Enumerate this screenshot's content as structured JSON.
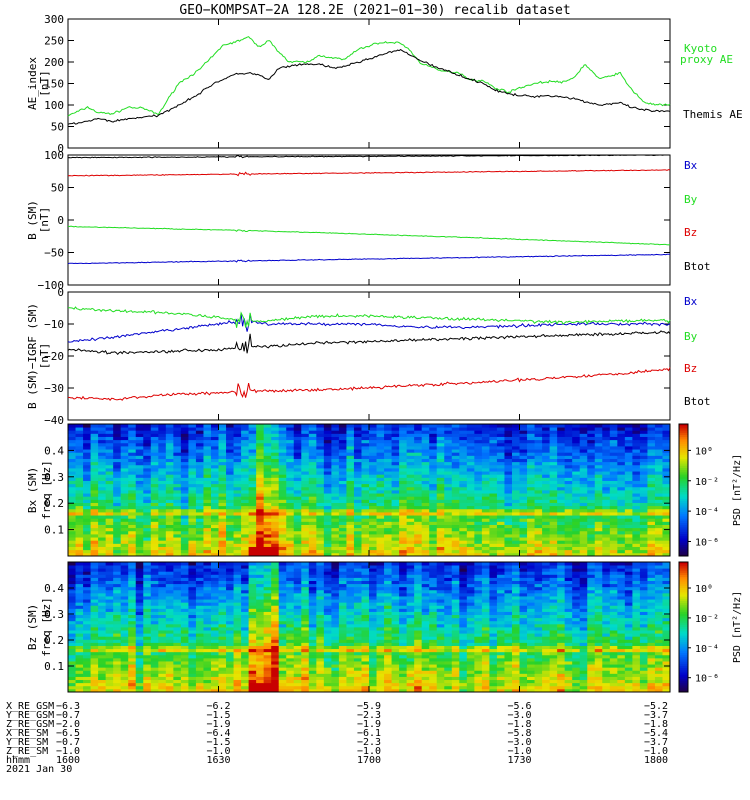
{
  "title": "GEO−KOMPSAT−2A 128.2E (2021−01−30) recalib dataset",
  "colors": {
    "black": "#000000",
    "green": "#22dd22",
    "blue": "#0000cc",
    "red": "#dd0000"
  },
  "chart_data": [
    {
      "type": "line",
      "ylabel": [
        "AE_index",
        "[nT]"
      ],
      "ylim": [
        0,
        300
      ],
      "yticks": [
        "0",
        "50",
        "100",
        "150",
        "200",
        "250",
        "300"
      ],
      "series": [
        {
          "name": "Kyoto proxy AE",
          "label_lines": [
            "Kyoto",
            "proxy AE"
          ],
          "color": "#22dd22",
          "x": [
            0,
            4,
            6,
            9,
            12,
            15,
            18,
            22,
            26,
            29,
            31,
            33,
            36,
            38,
            40,
            42,
            44,
            48,
            50,
            53,
            55,
            58,
            62,
            66,
            68,
            70,
            74,
            78,
            80,
            83,
            85,
            88,
            90,
            93,
            96,
            99,
            101,
            103,
            106,
            110,
            112,
            115,
            118,
            120
          ],
          "y": [
            75,
            95,
            82,
            80,
            95,
            92,
            78,
            150,
            180,
            215,
            240,
            245,
            258,
            235,
            250,
            225,
            200,
            200,
            215,
            210,
            205,
            230,
            245,
            245,
            230,
            200,
            180,
            175,
            160,
            155,
            140,
            130,
            140,
            150,
            155,
            153,
            165,
            195,
            160,
            175,
            140,
            105,
            100,
            100
          ]
        },
        {
          "name": "Themis AE",
          "label_lines": [
            "Themis AE"
          ],
          "color": "#000000",
          "x": [
            0,
            4,
            6,
            9,
            12,
            15,
            18,
            22,
            26,
            29,
            31,
            33,
            36,
            38,
            40,
            42,
            44,
            48,
            50,
            53,
            55,
            58,
            62,
            66,
            68,
            70,
            74,
            78,
            80,
            83,
            85,
            88,
            90,
            93,
            96,
            99,
            101,
            103,
            106,
            110,
            112,
            115,
            118,
            120
          ],
          "y": [
            55,
            62,
            68,
            62,
            68,
            72,
            75,
            100,
            125,
            150,
            160,
            170,
            175,
            170,
            158,
            185,
            190,
            195,
            195,
            185,
            190,
            200,
            215,
            228,
            218,
            205,
            185,
            170,
            160,
            150,
            135,
            125,
            122,
            120,
            122,
            118,
            115,
            108,
            100,
            105,
            95,
            88,
            85,
            85
          ]
        }
      ]
    },
    {
      "type": "line",
      "ylabel": [
        "B (SM)",
        "[nT]"
      ],
      "ylim": [
        -100,
        100
      ],
      "yticks": [
        "−100",
        "−50",
        "0",
        "50",
        "100"
      ],
      "series": [
        {
          "name": "Bx",
          "color": "#0000cc",
          "x": [
            0,
            120
          ],
          "y": [
            -67,
            -53
          ]
        },
        {
          "name": "By",
          "color": "#22dd22",
          "x": [
            0,
            40,
            80,
            120
          ],
          "y": [
            -10,
            -17,
            -27,
            -38
          ]
        },
        {
          "name": "Bz",
          "color": "#dd0000",
          "x": [
            0,
            120
          ],
          "y": [
            68,
            77
          ]
        },
        {
          "name": "Btot",
          "color": "#000000",
          "x": [
            0,
            120
          ],
          "y": [
            96,
            100
          ]
        }
      ]
    },
    {
      "type": "line",
      "ylabel": [
        "B (SM)−IGRF (SM)",
        "[nT]"
      ],
      "ylim": [
        -40,
        0
      ],
      "yticks": [
        "−40",
        "−30",
        "−20",
        "−10",
        "0"
      ],
      "series": [
        {
          "name": "Bx",
          "color": "#0000cc",
          "x": [
            0,
            10,
            20,
            30,
            35,
            40,
            50,
            60,
            70,
            80,
            90,
            100,
            110,
            120
          ],
          "y": [
            -15.5,
            -14,
            -12,
            -10,
            -9,
            -10,
            -10,
            -10,
            -11,
            -11,
            -10.5,
            -10,
            -10,
            -10
          ]
        },
        {
          "name": "By",
          "color": "#22dd22",
          "x": [
            0,
            10,
            20,
            30,
            35,
            40,
            50,
            60,
            70,
            80,
            90,
            100,
            110,
            120
          ],
          "y": [
            -5,
            -6,
            -6.5,
            -8,
            -9,
            -9,
            -7.5,
            -7.5,
            -8,
            -8.5,
            -9,
            -9.5,
            -9,
            -9
          ]
        },
        {
          "name": "Bz",
          "color": "#dd0000",
          "x": [
            0,
            10,
            20,
            30,
            35,
            40,
            50,
            60,
            70,
            80,
            90,
            100,
            110,
            120
          ],
          "y": [
            -33,
            -33.5,
            -32,
            -31.5,
            -31,
            -31,
            -30.5,
            -30,
            -29,
            -28.5,
            -27.5,
            -26.5,
            -25.5,
            -24
          ]
        },
        {
          "name": "Btot",
          "color": "#000000",
          "x": [
            0,
            10,
            20,
            30,
            35,
            40,
            50,
            60,
            70,
            80,
            90,
            100,
            110,
            120
          ],
          "y": [
            -18,
            -19,
            -18.5,
            -18,
            -17,
            -17,
            -16,
            -15.5,
            -15,
            -14.5,
            -14,
            -13.5,
            -13,
            -12.5
          ]
        }
      ]
    },
    {
      "type": "heatmap",
      "ylabel": [
        "Bx (SM)",
        "freq  [Hz]"
      ],
      "ylim": [
        0,
        0.5
      ],
      "yticks": [
        "0.1",
        "0.2",
        "0.3",
        "0.4"
      ],
      "colorbar": {
        "label": "PSD [nT²/Hz]",
        "ticks": [
          "10⁰",
          "10⁻²",
          "10⁻⁴",
          "10⁻⁶"
        ]
      }
    },
    {
      "type": "heatmap",
      "ylabel": [
        "Bz (SM)",
        "freq  [Hz]"
      ],
      "ylim": [
        0,
        0.5
      ],
      "yticks": [
        "0.1",
        "0.2",
        "0.3",
        "0.4"
      ],
      "colorbar": {
        "label": "PSD [nT²/Hz]",
        "ticks": [
          "10⁰",
          "10⁻²",
          "10⁻⁴",
          "10⁻⁶"
        ]
      }
    }
  ],
  "ephemeris": {
    "row_labels": [
      "X_RE_GSM",
      "Y_RE_GSM",
      "Z_RE_GSM",
      "X_RE_SM",
      "Y_RE_SM",
      "Z_RE_SM",
      "hhmm"
    ],
    "columns": [
      [
        "−6.3",
        "−0.7",
        "−2.0",
        "−6.5",
        "−0.7",
        "−1.0",
        "1600"
      ],
      [
        "−6.2",
        "−1.5",
        "−1.9",
        "−6.4",
        "−1.5",
        "−1.0",
        "1630"
      ],
      [
        "−5.9",
        "−2.3",
        "−1.9",
        "−6.1",
        "−2.3",
        "−1.0",
        "1700"
      ],
      [
        "−5.6",
        "−3.0",
        "−1.8",
        "−5.8",
        "−3.0",
        "−1.0",
        "1730"
      ],
      [
        "−5.2",
        "−3.7",
        "−1.8",
        "−5.4",
        "−3.7",
        "−1.0",
        "1800"
      ]
    ],
    "date": "2021 Jan 30"
  }
}
